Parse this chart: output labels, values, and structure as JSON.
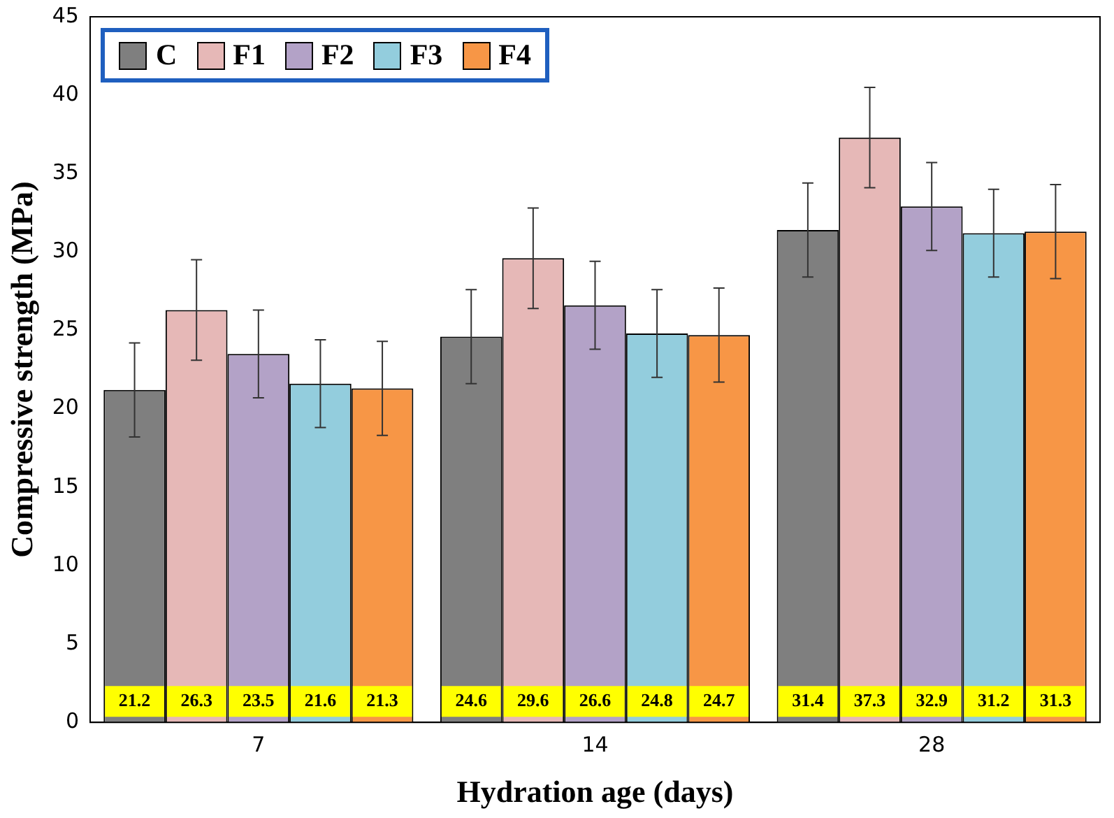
{
  "chart_data": {
    "type": "bar",
    "xlabel": "Hydration age (days)",
    "ylabel": "Compressive strength (MPa)",
    "categories": [
      "7",
      "14",
      "28"
    ],
    "series": [
      {
        "name": "C",
        "color": "#7f7f7f",
        "values": [
          21.2,
          24.6,
          31.4
        ],
        "errors": [
          3,
          3,
          3
        ]
      },
      {
        "name": "F1",
        "color": "#e6b8b7",
        "values": [
          26.3,
          29.6,
          37.3
        ],
        "errors": [
          3.2,
          3.2,
          3.2
        ]
      },
      {
        "name": "F2",
        "color": "#b3a2c7",
        "values": [
          23.5,
          26.6,
          32.9
        ],
        "errors": [
          2.8,
          2.8,
          2.8
        ]
      },
      {
        "name": "F3",
        "color": "#93cddd",
        "values": [
          21.6,
          24.8,
          31.2
        ],
        "errors": [
          2.8,
          2.8,
          2.8
        ]
      },
      {
        "name": "F4",
        "color": "#f79646",
        "values": [
          21.3,
          24.7,
          31.3
        ],
        "errors": [
          3,
          3,
          3
        ]
      }
    ],
    "ylim": [
      0,
      45
    ],
    "yticks": [
      0,
      5,
      10,
      15,
      20,
      25,
      30,
      35,
      40,
      45
    ],
    "grid": false,
    "legend": "top left",
    "data_labels": true
  }
}
